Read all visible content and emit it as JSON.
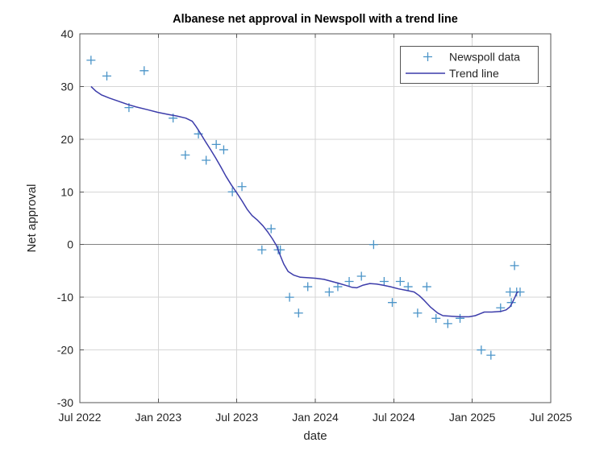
{
  "chart_data": {
    "type": "scatter",
    "title": "Albanese net approval in Newspoll with a trend line",
    "xlabel": "date",
    "ylabel": "Net approval",
    "x_ticks": [
      "Jul 2022",
      "Jan 2023",
      "Jul 2023",
      "Jan 2024",
      "Jul 2024",
      "Jan 2025",
      "Jul 2025"
    ],
    "x_tick_interval_months": 6,
    "y_ticks": [
      40,
      30,
      20,
      10,
      0,
      -10,
      -20,
      -30
    ],
    "ylim": [
      -30,
      40
    ],
    "xlim_months": [
      0,
      36
    ],
    "x_axis_start": "2022-07-01",
    "grid": true,
    "zero_line_y": 0,
    "legend": {
      "position": "northeast",
      "entries": [
        {
          "label": "Newspoll data",
          "type": "marker"
        },
        {
          "label": "Trend line",
          "type": "line"
        }
      ]
    },
    "colors": {
      "marker": "#4a94c8",
      "trend": "#3c3caa",
      "grid": "#d6d6d6",
      "zero_line": "#828282",
      "frame": "#555555",
      "text": "#252525",
      "background": "#ffffff"
    },
    "series": [
      {
        "name": "Newspoll data",
        "style": "plus-markers",
        "points": [
          {
            "date": "2022-07-27",
            "value": 35
          },
          {
            "date": "2022-09-03",
            "value": 32
          },
          {
            "date": "2022-10-24",
            "value": 26
          },
          {
            "date": "2022-11-29",
            "value": 33
          },
          {
            "date": "2023-02-05",
            "value": 24
          },
          {
            "date": "2023-03-03",
            "value": 17
          },
          {
            "date": "2023-04-03",
            "value": 21
          },
          {
            "date": "2023-04-21",
            "value": 16
          },
          {
            "date": "2023-05-14",
            "value": 19
          },
          {
            "date": "2023-06-01",
            "value": 18
          },
          {
            "date": "2023-06-21",
            "value": 10
          },
          {
            "date": "2023-07-13",
            "value": 11
          },
          {
            "date": "2023-08-29",
            "value": -1
          },
          {
            "date": "2023-09-20",
            "value": 3
          },
          {
            "date": "2023-10-06",
            "value": -1
          },
          {
            "date": "2023-10-11",
            "value": -1
          },
          {
            "date": "2023-11-02",
            "value": -10
          },
          {
            "date": "2023-11-23",
            "value": -13
          },
          {
            "date": "2023-12-14",
            "value": -8
          },
          {
            "date": "2024-02-03",
            "value": -9
          },
          {
            "date": "2024-02-23",
            "value": -8
          },
          {
            "date": "2024-03-19",
            "value": -7
          },
          {
            "date": "2024-04-17",
            "value": -6
          },
          {
            "date": "2024-05-15",
            "value": 0
          },
          {
            "date": "2024-06-09",
            "value": -7
          },
          {
            "date": "2024-06-28",
            "value": -11
          },
          {
            "date": "2024-07-16",
            "value": -7
          },
          {
            "date": "2024-08-04",
            "value": -8
          },
          {
            "date": "2024-08-26",
            "value": -13
          },
          {
            "date": "2024-09-17",
            "value": -8
          },
          {
            "date": "2024-10-08",
            "value": -14
          },
          {
            "date": "2024-11-05",
            "value": -15
          },
          {
            "date": "2024-12-03",
            "value": -14
          },
          {
            "date": "2025-01-22",
            "value": -20
          },
          {
            "date": "2025-02-14",
            "value": -21
          },
          {
            "date": "2025-03-06",
            "value": -12
          },
          {
            "date": "2025-03-28",
            "value": -9
          },
          {
            "date": "2025-03-31",
            "value": -11
          },
          {
            "date": "2025-04-08",
            "value": -4
          },
          {
            "date": "2025-04-13",
            "value": -9
          },
          {
            "date": "2025-04-21",
            "value": -9
          }
        ]
      },
      {
        "name": "Trend line",
        "style": "line",
        "points": [
          {
            "date": "2022-07-27",
            "value": 30.0
          },
          {
            "date": "2022-08-08",
            "value": 29.1
          },
          {
            "date": "2022-08-21",
            "value": 28.4
          },
          {
            "date": "2022-09-09",
            "value": 27.8
          },
          {
            "date": "2022-09-30",
            "value": 27.2
          },
          {
            "date": "2022-10-21",
            "value": 26.6
          },
          {
            "date": "2022-11-11",
            "value": 26.1
          },
          {
            "date": "2022-12-06",
            "value": 25.6
          },
          {
            "date": "2022-12-30",
            "value": 25.1
          },
          {
            "date": "2023-01-24",
            "value": 24.7
          },
          {
            "date": "2023-02-14",
            "value": 24.4
          },
          {
            "date": "2023-03-04",
            "value": 24.0
          },
          {
            "date": "2023-03-19",
            "value": 23.4
          },
          {
            "date": "2023-03-28",
            "value": 22.4
          },
          {
            "date": "2023-04-07",
            "value": 21.2
          },
          {
            "date": "2023-04-19",
            "value": 19.6
          },
          {
            "date": "2023-05-01",
            "value": 18.0
          },
          {
            "date": "2023-05-13",
            "value": 16.4
          },
          {
            "date": "2023-05-25",
            "value": 14.7
          },
          {
            "date": "2023-06-06",
            "value": 13.0
          },
          {
            "date": "2023-06-19",
            "value": 11.3
          },
          {
            "date": "2023-07-01",
            "value": 9.8
          },
          {
            "date": "2023-07-13",
            "value": 8.3
          },
          {
            "date": "2023-07-25",
            "value": 6.7
          },
          {
            "date": "2023-08-06",
            "value": 5.5
          },
          {
            "date": "2023-08-19",
            "value": 4.6
          },
          {
            "date": "2023-08-31",
            "value": 3.6
          },
          {
            "date": "2023-09-12",
            "value": 2.4
          },
          {
            "date": "2023-09-23",
            "value": 1.1
          },
          {
            "date": "2023-10-02",
            "value": -0.2
          },
          {
            "date": "2023-10-10",
            "value": -1.9
          },
          {
            "date": "2023-10-19",
            "value": -3.7
          },
          {
            "date": "2023-10-29",
            "value": -5.1
          },
          {
            "date": "2023-11-12",
            "value": -5.8
          },
          {
            "date": "2023-11-27",
            "value": -6.2
          },
          {
            "date": "2023-12-15",
            "value": -6.3
          },
          {
            "date": "2024-01-03",
            "value": -6.4
          },
          {
            "date": "2024-01-21",
            "value": -6.6
          },
          {
            "date": "2024-02-09",
            "value": -7.0
          },
          {
            "date": "2024-02-27",
            "value": -7.4
          },
          {
            "date": "2024-03-13",
            "value": -7.8
          },
          {
            "date": "2024-03-25",
            "value": -8.1
          },
          {
            "date": "2024-04-06",
            "value": -8.2
          },
          {
            "date": "2024-04-21",
            "value": -7.7
          },
          {
            "date": "2024-05-06",
            "value": -7.4
          },
          {
            "date": "2024-05-22",
            "value": -7.5
          },
          {
            "date": "2024-06-06",
            "value": -7.7
          },
          {
            "date": "2024-06-24",
            "value": -8.0
          },
          {
            "date": "2024-07-12",
            "value": -8.4
          },
          {
            "date": "2024-07-31",
            "value": -8.7
          },
          {
            "date": "2024-08-18",
            "value": -9.0
          },
          {
            "date": "2024-08-30",
            "value": -9.7
          },
          {
            "date": "2024-09-11",
            "value": -10.6
          },
          {
            "date": "2024-09-26",
            "value": -11.9
          },
          {
            "date": "2024-10-12",
            "value": -13.0
          },
          {
            "date": "2024-10-24",
            "value": -13.5
          },
          {
            "date": "2024-11-14",
            "value": -13.6
          },
          {
            "date": "2024-12-05",
            "value": -13.7
          },
          {
            "date": "2024-12-24",
            "value": -13.7
          },
          {
            "date": "2025-01-08",
            "value": -13.5
          },
          {
            "date": "2025-01-20",
            "value": -13.1
          },
          {
            "date": "2025-01-29",
            "value": -12.8
          },
          {
            "date": "2025-02-16",
            "value": -12.8
          },
          {
            "date": "2025-03-06",
            "value": -12.7
          },
          {
            "date": "2025-03-19",
            "value": -12.4
          },
          {
            "date": "2025-03-28",
            "value": -11.8
          },
          {
            "date": "2025-04-03",
            "value": -11.0
          },
          {
            "date": "2025-04-09",
            "value": -10.0
          },
          {
            "date": "2025-04-13",
            "value": -9.2
          },
          {
            "date": "2025-04-17",
            "value": -8.9
          }
        ]
      }
    ]
  }
}
